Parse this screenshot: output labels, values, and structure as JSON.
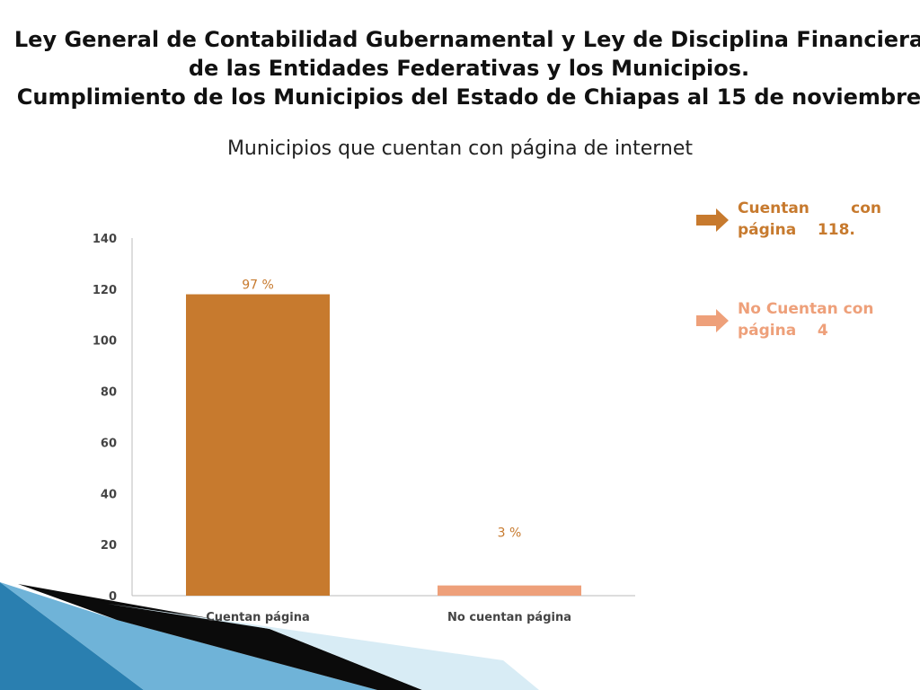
{
  "header": {
    "title_lines": [
      "Ley General de Contabilidad Gubernamental y Ley de Disciplina Financiera",
      "de las Entidades Federativas y los Municipios.",
      "Cumplimiento de los Municipios del Estado de Chiapas al 15 de noviembre"
    ],
    "subtitle": "Municipios que cuentan con página de internet"
  },
  "chart_data": {
    "type": "bar",
    "categories": [
      "Cuentan página",
      "No cuentan página"
    ],
    "values": [
      118,
      4
    ],
    "data_labels": [
      "97 %",
      "3 %"
    ],
    "ylim": [
      0,
      140
    ],
    "yticks": [
      0,
      20,
      40,
      60,
      80,
      100,
      120,
      140
    ],
    "title": "",
    "xlabel": "",
    "ylabel": "",
    "grid": false,
    "colors": [
      "#C77A2E",
      "#EEA07A"
    ]
  },
  "legend": {
    "items": [
      {
        "line1_a": "Cuentan",
        "line1_b": "con",
        "line2_a": "página",
        "line2_b": "118.",
        "color": "#C77A2E"
      },
      {
        "line1_a": "No Cuentan con",
        "line1_b": "",
        "line2_a": "página",
        "line2_b": "4",
        "color": "#EEA07A"
      }
    ]
  }
}
